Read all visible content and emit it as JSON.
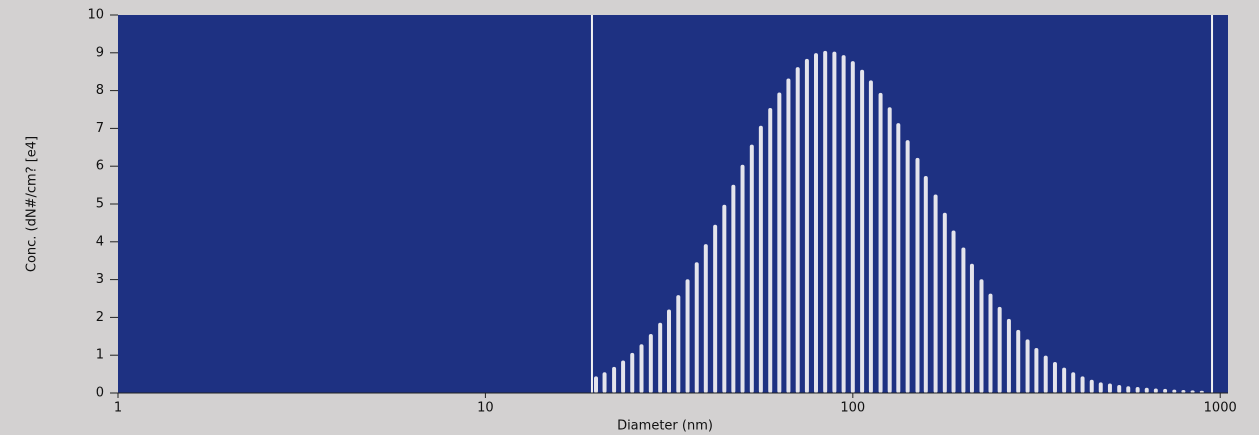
{
  "chart_data": {
    "type": "bar",
    "log_x": true,
    "xlabel": "Diameter  (nm)",
    "ylabel": "Conc.  (dN#/cm?  [e4]",
    "x": [
      20.0,
      21.1,
      22.4,
      23.7,
      25.1,
      26.6,
      28.2,
      29.9,
      31.6,
      33.5,
      35.5,
      37.6,
      39.8,
      42.2,
      44.7,
      47.3,
      50.1,
      53.1,
      56.2,
      59.6,
      63.1,
      66.8,
      70.8,
      75.0,
      79.4,
      84.1,
      89.1,
      94.4,
      100,
      106,
      112,
      119,
      126,
      133,
      141,
      150,
      158,
      168,
      178,
      188,
      200,
      211,
      224,
      237,
      251,
      266,
      282,
      299,
      316,
      335,
      355,
      376,
      398,
      422,
      447,
      473,
      501,
      531,
      562,
      596,
      631,
      668,
      708,
      750,
      794,
      841,
      891
    ],
    "values": [
      0.44,
      0.55,
      0.69,
      0.86,
      1.06,
      1.29,
      1.56,
      1.86,
      2.21,
      2.59,
      3.01,
      3.46,
      3.94,
      4.45,
      4.98,
      5.51,
      6.04,
      6.57,
      7.07,
      7.54,
      7.95,
      8.32,
      8.62,
      8.84,
      8.99,
      9.05,
      9.03,
      8.94,
      8.78,
      8.55,
      8.27,
      7.94,
      7.56,
      7.14,
      6.69,
      6.22,
      5.74,
      5.25,
      4.77,
      4.3,
      3.85,
      3.42,
      3.01,
      2.63,
      2.28,
      1.96,
      1.67,
      1.42,
      1.19,
      0.99,
      0.82,
      0.67,
      0.55,
      0.44,
      0.35,
      0.28,
      0.25,
      0.21,
      0.18,
      0.16,
      0.14,
      0.12,
      0.11,
      0.09,
      0.08,
      0.07,
      0.06
    ],
    "color": "#e4e4ec",
    "background": "#1e3182",
    "range_lines": [
      19.5,
      950
    ],
    "xlim": [
      1,
      1050
    ],
    "xticks": [
      1,
      10,
      100,
      1000
    ],
    "ylim": [
      0,
      10
    ],
    "yticks": [
      0,
      1,
      2,
      3,
      4,
      5,
      6,
      7,
      8,
      9,
      10
    ]
  }
}
